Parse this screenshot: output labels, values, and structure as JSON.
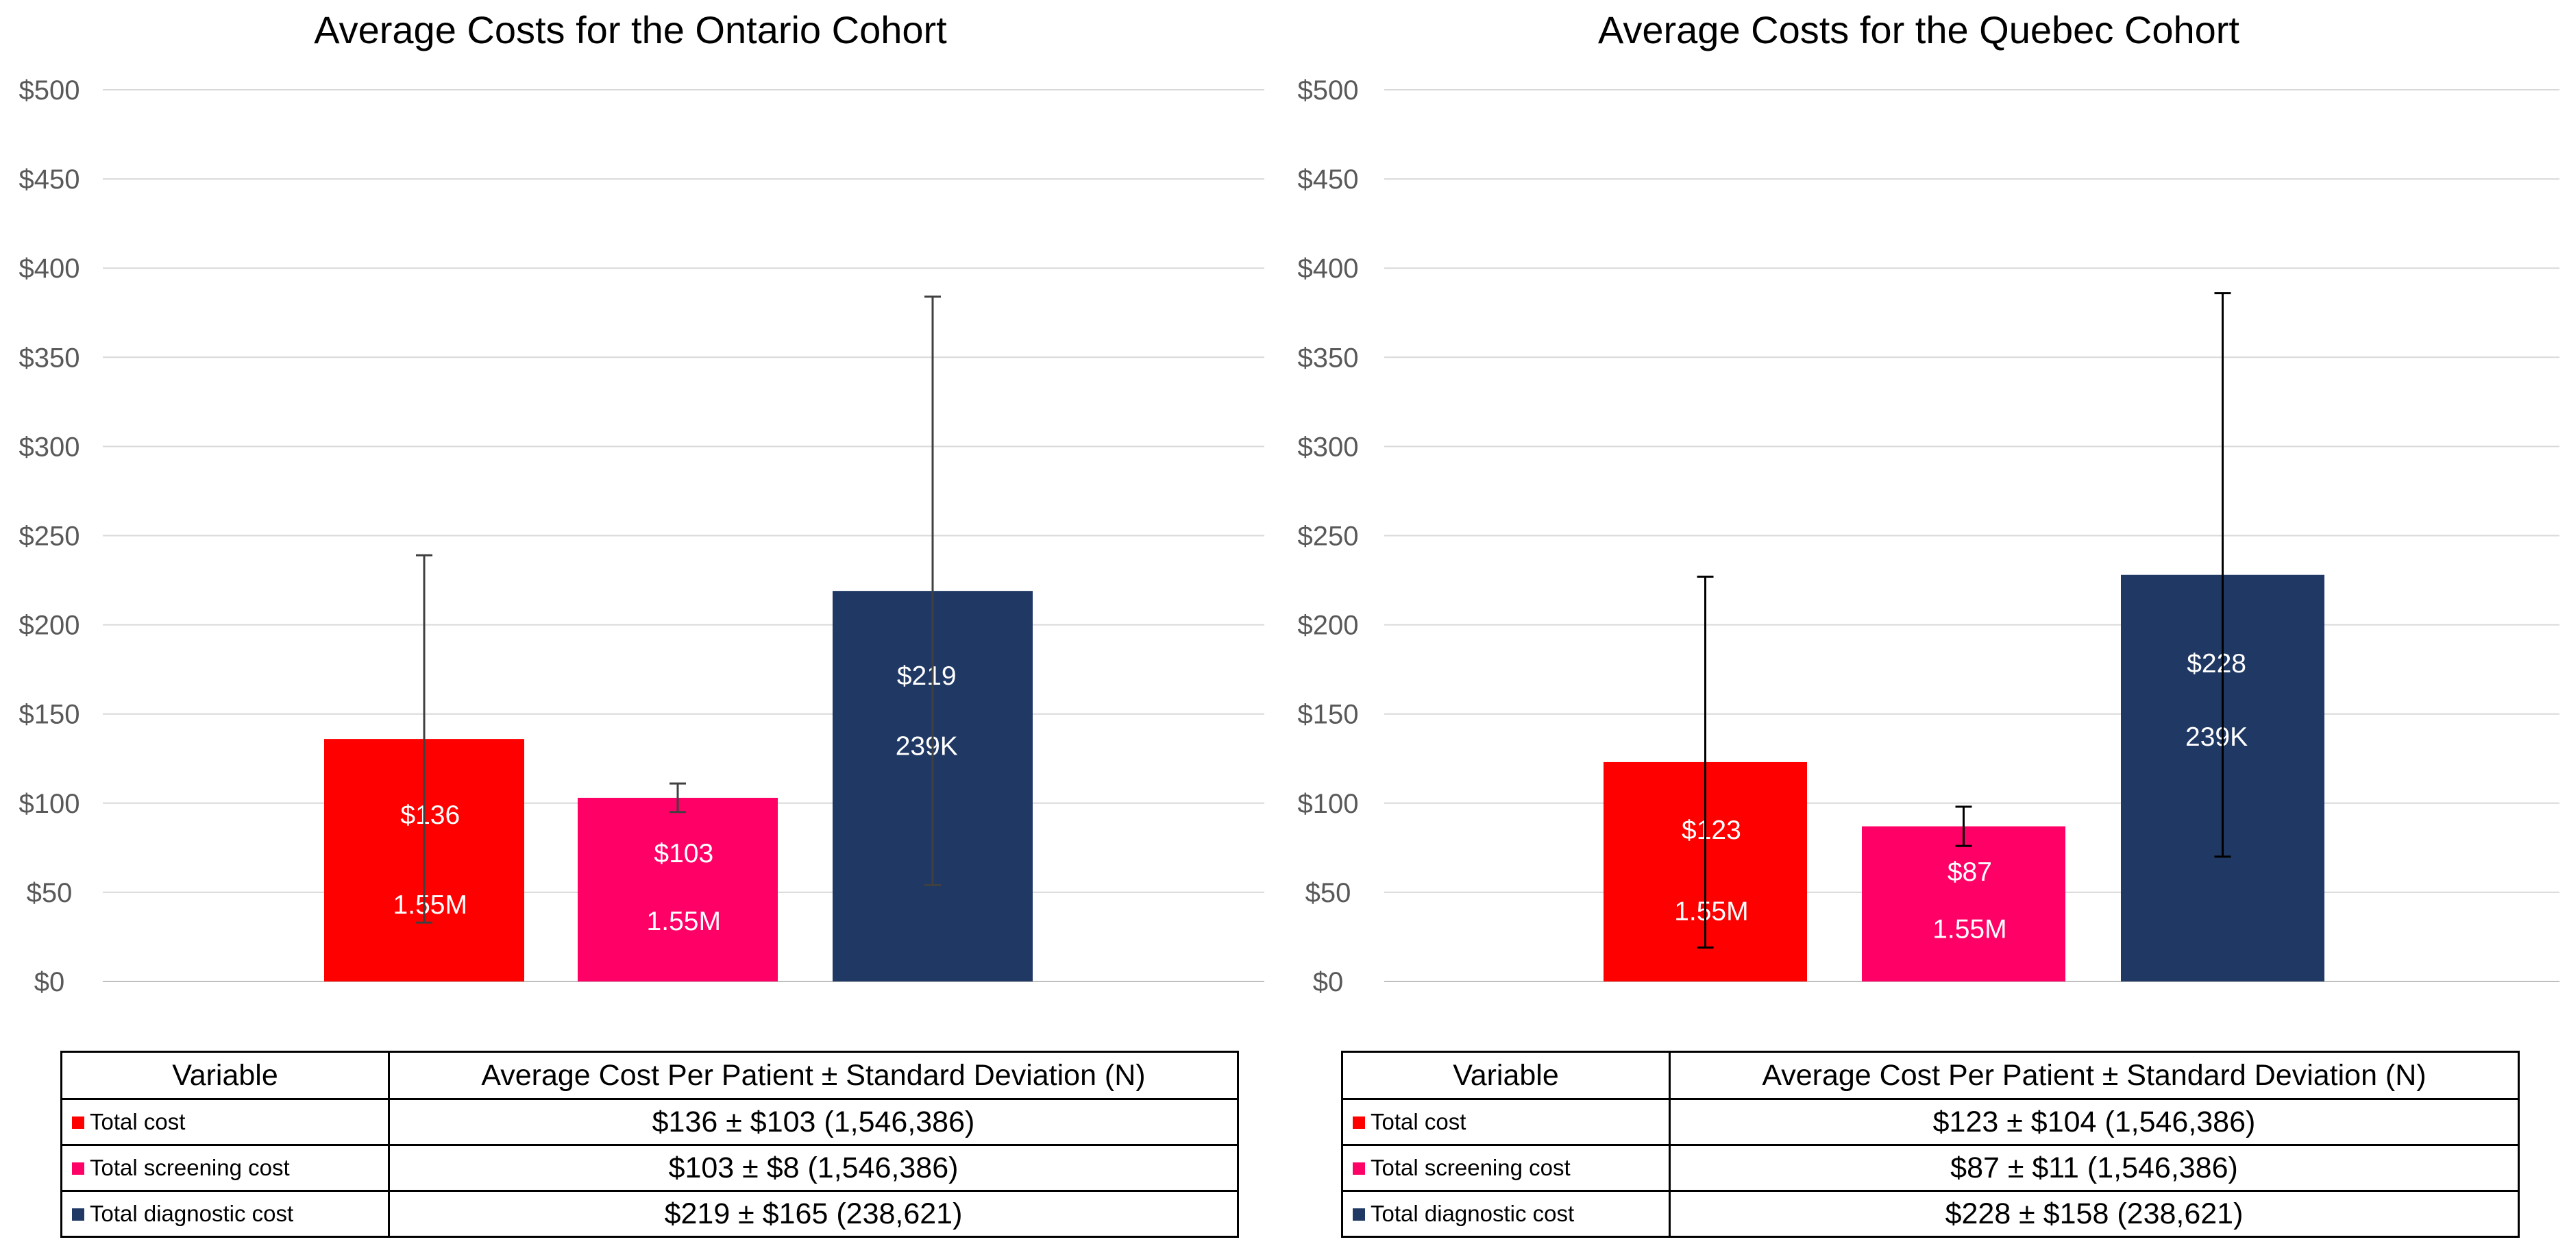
{
  "chart_data": [
    {
      "type": "bar",
      "title": "Average Costs for the Ontario Cohort",
      "xlabel": "",
      "ylabel": "",
      "ylim": [
        0,
        500
      ],
      "yticks": [
        "$0",
        "$50",
        "$100",
        "$150",
        "$200",
        "$250",
        "$300",
        "$350",
        "$400",
        "$450",
        "$500"
      ],
      "grid": true,
      "categories": [
        "Total cost",
        "Total screening cost",
        "Total diagnostic cost"
      ],
      "values": [
        136,
        103,
        219
      ],
      "error_sd": [
        103,
        8,
        165
      ],
      "colors": [
        "#ff0000",
        "#ff0066",
        "#1f3864"
      ],
      "value_labels": [
        "$136",
        "$103",
        "$219"
      ],
      "n_labels": [
        "1.55M",
        "1.55M",
        "239K"
      ]
    },
    {
      "type": "bar",
      "title": "Average Costs for the Quebec Cohort",
      "xlabel": "",
      "ylabel": "",
      "ylim": [
        0,
        500
      ],
      "yticks": [
        "$0",
        "$50",
        "$100",
        "$150",
        "$200",
        "$250",
        "$300",
        "$350",
        "$400",
        "$450",
        "$500"
      ],
      "grid": true,
      "categories": [
        "Total cost",
        "Total screening cost",
        "Total diagnostic cost"
      ],
      "values": [
        123,
        87,
        228
      ],
      "error_sd": [
        104,
        11,
        158
      ],
      "colors": [
        "#ff0000",
        "#ff0066",
        "#1f3864"
      ],
      "value_labels": [
        "$123",
        "$87",
        "$228"
      ],
      "n_labels": [
        "1.55M",
        "1.55M",
        "239K"
      ]
    }
  ],
  "tables": [
    {
      "header": [
        "Variable",
        "Average Cost Per Patient ± Standard Deviation (N)"
      ],
      "rows": [
        {
          "variable": "Total cost",
          "value": "$136 ± $103 (1,546,386)"
        },
        {
          "variable": "Total screening cost",
          "value": "$103 ± $8 (1,546,386)"
        },
        {
          "variable": "Total diagnostic cost",
          "value": "$219 ± $165 (238,621)"
        }
      ]
    },
    {
      "header": [
        "Variable",
        "Average Cost Per Patient ± Standard Deviation (N)"
      ],
      "rows": [
        {
          "variable": "Total cost",
          "value": "$123 ± $104 (1,546,386)"
        },
        {
          "variable": "Total screening cost",
          "value": "$87 ± $11 (1,546,386)"
        },
        {
          "variable": "Total diagnostic cost",
          "value": "$228 ± $158 (238,621)"
        }
      ]
    }
  ]
}
